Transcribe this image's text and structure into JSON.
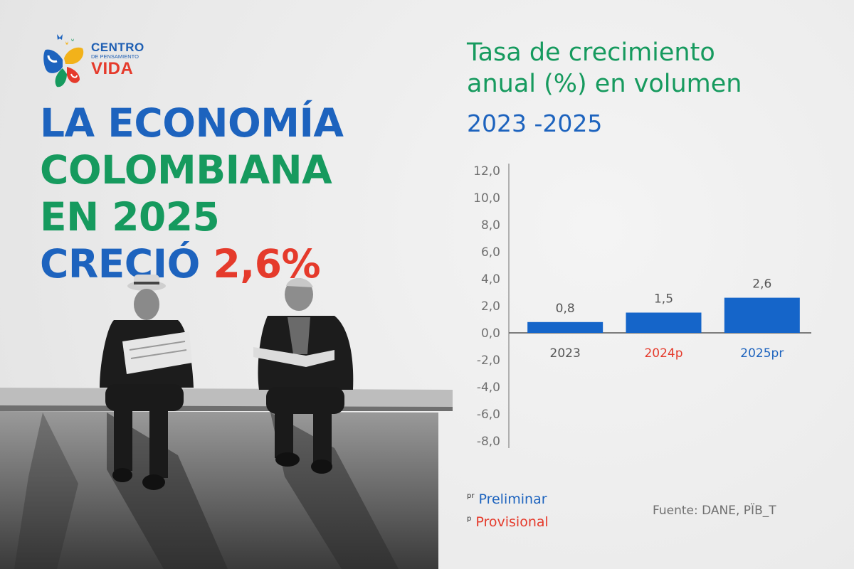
{
  "logo": {
    "line1": "CENTRO",
    "line2": "DE PENSAMIENTO",
    "line3": "VIDA"
  },
  "headline": {
    "line1": "LA ECONOMÍA",
    "line2": "COLOMBIANA",
    "line3": "EN 2025",
    "line4_prefix": "CRECIÓ",
    "line4_value": "2,6%"
  },
  "colors": {
    "blue": "#1d63be",
    "green": "#169a5e",
    "red": "#e53a2b",
    "bar": "#1565c9"
  },
  "chart_data": {
    "type": "bar",
    "title": "Tasa de crecimiento anual (%) en volumen",
    "title_line1": "Tasa de crecimiento",
    "title_line2": "anual (%) en volumen",
    "subtitle": "2023 -2025",
    "categories": [
      "2023",
      "2024p",
      "2025pr"
    ],
    "category_colors": [
      "#555555",
      "#e53a2b",
      "#1d63be"
    ],
    "values": [
      0.8,
      1.5,
      2.6
    ],
    "value_labels": [
      "0,8",
      "1,5",
      "2,6"
    ],
    "ylim": [
      -8,
      12
    ],
    "yticks": [
      12,
      10,
      8,
      6,
      4,
      2,
      0,
      -2,
      -4,
      -6,
      -8
    ],
    "ytick_labels": [
      "12,0",
      "10,0",
      "8,0",
      "6,0",
      "4,0",
      "2,0",
      "0,0",
      "-2,0",
      "-4,0",
      "-6,0",
      "-8,0"
    ],
    "grid": false
  },
  "legend": {
    "items": [
      {
        "mark": "pr",
        "label": "Preliminar",
        "color": "#1d63be"
      },
      {
        "mark": "p",
        "label": "Provisional",
        "color": "#e53a2b"
      }
    ]
  },
  "source": "Fuente: DANE, PÏB_T"
}
